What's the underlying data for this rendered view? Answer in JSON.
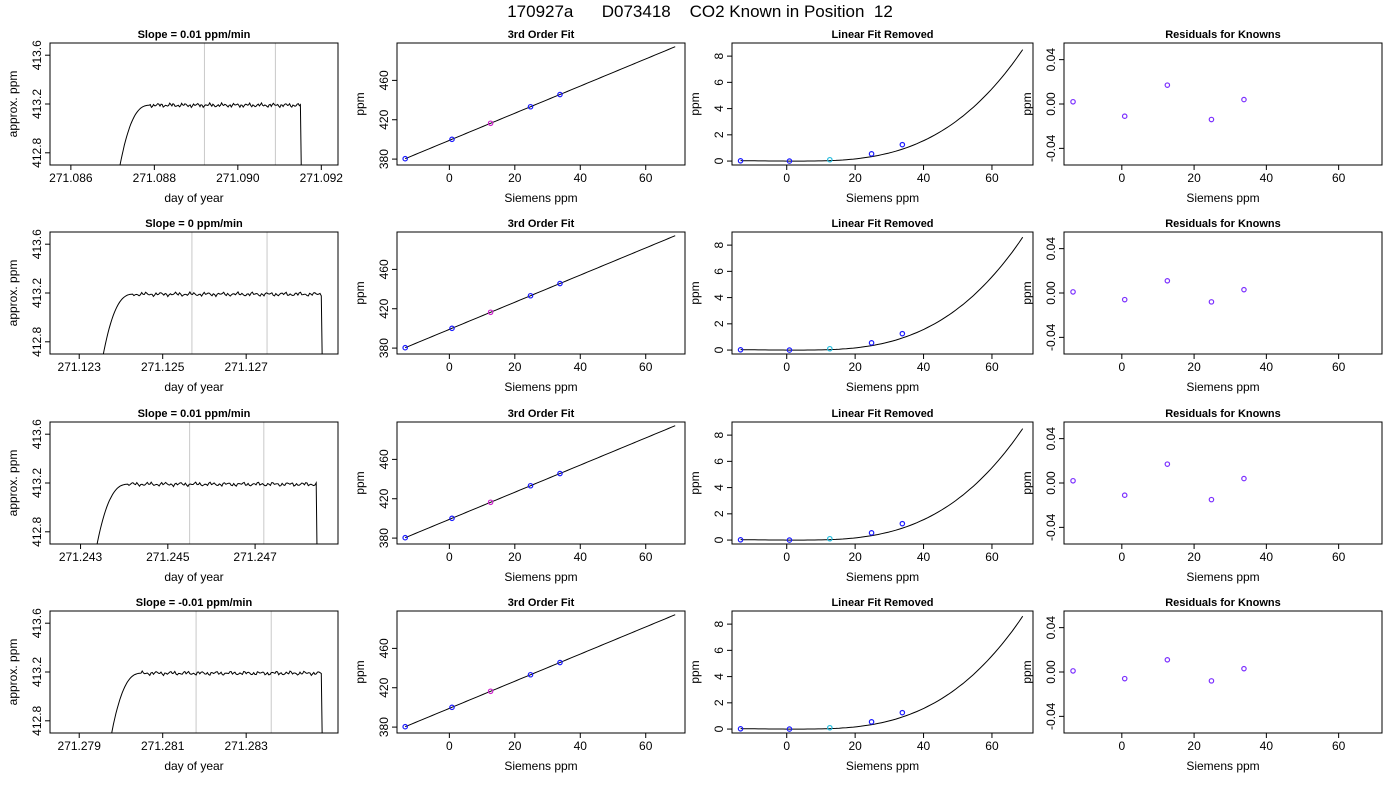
{
  "page": {
    "title": "170927a      D073418    CO2 Known in Position  12"
  },
  "colors": {
    "axis": "#000000",
    "trace": "#000000",
    "vline": "#c8c8c8",
    "point_blue": "#1a1aff",
    "point_magenta": "#cc22cc",
    "point_cyan": "#22bbdd",
    "residual_point": "#7b2fff"
  },
  "chart_data": [
    {
      "type": "line",
      "row": 1,
      "col": 1,
      "title": "Slope =  0.01  ppm/min",
      "xlabel": "day of year",
      "ylabel": "approx. ppm",
      "xlim": [
        271.0855,
        271.0924
      ],
      "ylim": [
        412.7,
        413.7
      ],
      "xticks": [
        "271.086",
        "271.088",
        "271.090",
        "271.092"
      ],
      "xtick_values": [
        271.086,
        271.088,
        271.09,
        271.092
      ],
      "yticks": [
        "412.8",
        "413.2",
        "413.6"
      ],
      "ytick_values": [
        412.8,
        413.2,
        413.6
      ],
      "vlines": [
        271.0892,
        271.0909
      ],
      "trace": {
        "start": 271.0871,
        "rise_end": 271.0879,
        "end": 271.0915,
        "level": 413.19
      }
    },
    {
      "type": "line",
      "row": 1,
      "col": 2,
      "title": "3rd Order Fit",
      "xlabel": "Siemens ppm",
      "ylabel": "ppm",
      "xlim": [
        -16,
        72
      ],
      "ylim": [
        374,
        498
      ],
      "xticks": [
        "0",
        "20",
        "40",
        "60"
      ],
      "xtick_values": [
        0,
        20,
        40,
        60
      ],
      "yticks": [
        "380",
        "420",
        "460"
      ],
      "ytick_values": [
        380,
        420,
        460
      ],
      "curve": {
        "x_range": [
          -13.5,
          69
        ],
        "coef": [
          399,
          1.38,
          0.0,
          0.0
        ]
      },
      "points": [
        {
          "x": -13.5,
          "y": 380.4,
          "color": "blue"
        },
        {
          "x": 0.8,
          "y": 400.1,
          "color": "blue"
        },
        {
          "x": 12.6,
          "y": 416.4,
          "color": "magenta"
        },
        {
          "x": 24.8,
          "y": 433.2,
          "color": "blue"
        },
        {
          "x": 33.8,
          "y": 445.6,
          "color": "blue"
        }
      ]
    },
    {
      "type": "line",
      "row": 1,
      "col": 3,
      "title": "Linear Fit Removed",
      "xlabel": "Siemens ppm",
      "ylabel": "ppm",
      "xlim": [
        -16,
        72
      ],
      "ylim": [
        -0.3,
        9
      ],
      "xticks": [
        "0",
        "20",
        "40",
        "60"
      ],
      "xtick_values": [
        0,
        20,
        40,
        60
      ],
      "yticks": [
        "0",
        "2",
        "4",
        "6",
        "8"
      ],
      "ytick_values": [
        0,
        2,
        4,
        6,
        8
      ],
      "curve": {
        "x_range": [
          -13.5,
          69
        ],
        "cubic_at_69": 8.5
      },
      "points": [
        {
          "x": -13.5,
          "y": 0.02,
          "color": "blue"
        },
        {
          "x": 0.8,
          "y": 0.0,
          "color": "blue"
        },
        {
          "x": 12.6,
          "y": 0.1,
          "color": "cyan"
        },
        {
          "x": 24.8,
          "y": 0.55,
          "color": "blue"
        },
        {
          "x": 33.8,
          "y": 1.25,
          "color": "blue"
        }
      ]
    },
    {
      "type": "scatter",
      "row": 1,
      "col": 4,
      "title": "Residuals for Knowns",
      "xlabel": "Siemens ppm",
      "ylabel": "ppm",
      "xlim": [
        -16,
        72
      ],
      "ylim": [
        -0.055,
        0.055
      ],
      "xticks": [
        "0",
        "20",
        "40",
        "60"
      ],
      "xtick_values": [
        0,
        20,
        40,
        60
      ],
      "yticks": [
        "-0.04",
        "0.00",
        "0.04"
      ],
      "ytick_values": [
        -0.04,
        0.0,
        0.04
      ],
      "points": [
        {
          "x": -13.5,
          "y": 0.002
        },
        {
          "x": 0.8,
          "y": -0.011
        },
        {
          "x": 12.6,
          "y": 0.017
        },
        {
          "x": 24.8,
          "y": -0.014
        },
        {
          "x": 33.8,
          "y": 0.004
        }
      ]
    },
    {
      "type": "line",
      "row": 2,
      "col": 1,
      "title": "Slope =  0  ppm/min",
      "xlabel": "day of year",
      "ylabel": "approx. ppm",
      "xlim": [
        271.1223,
        271.1292
      ],
      "ylim": [
        412.7,
        413.7
      ],
      "xticks": [
        "271.123",
        "271.125",
        "271.127"
      ],
      "xtick_values": [
        271.123,
        271.125,
        271.127
      ],
      "yticks": [
        "412.8",
        "413.2",
        "413.6"
      ],
      "ytick_values": [
        412.8,
        413.2,
        413.6
      ],
      "vlines": [
        271.1257,
        271.1275
      ],
      "trace": {
        "start": 271.1235,
        "rise_end": 271.1243,
        "end": 271.1288,
        "level": 413.19
      }
    },
    {
      "type": "line",
      "row": 2,
      "col": 2,
      "title": "3rd Order Fit",
      "xlabel": "Siemens ppm",
      "ylabel": "ppm",
      "xlim": [
        -16,
        72
      ],
      "ylim": [
        374,
        498
      ],
      "xticks": [
        "0",
        "20",
        "40",
        "60"
      ],
      "xtick_values": [
        0,
        20,
        40,
        60
      ],
      "yticks": [
        "380",
        "420",
        "460"
      ],
      "ytick_values": [
        380,
        420,
        460
      ],
      "curve": {
        "x_range": [
          -13.5,
          69
        ],
        "coef": [
          399,
          1.38,
          0.0,
          0.0
        ]
      },
      "points": [
        {
          "x": -13.5,
          "y": 380.4,
          "color": "blue"
        },
        {
          "x": 0.8,
          "y": 400.1,
          "color": "blue"
        },
        {
          "x": 12.6,
          "y": 416.4,
          "color": "magenta"
        },
        {
          "x": 24.8,
          "y": 433.2,
          "color": "blue"
        },
        {
          "x": 33.8,
          "y": 445.6,
          "color": "blue"
        }
      ]
    },
    {
      "type": "line",
      "row": 2,
      "col": 3,
      "title": "Linear Fit Removed",
      "xlabel": "Siemens ppm",
      "ylabel": "ppm",
      "xlim": [
        -16,
        72
      ],
      "ylim": [
        -0.3,
        9
      ],
      "xticks": [
        "0",
        "20",
        "40",
        "60"
      ],
      "xtick_values": [
        0,
        20,
        40,
        60
      ],
      "yticks": [
        "0",
        "2",
        "4",
        "6",
        "8"
      ],
      "ytick_values": [
        0,
        2,
        4,
        6,
        8
      ],
      "curve": {
        "x_range": [
          -13.5,
          69
        ],
        "cubic_at_69": 8.6
      },
      "points": [
        {
          "x": -13.5,
          "y": 0.02,
          "color": "blue"
        },
        {
          "x": 0.8,
          "y": 0.0,
          "color": "blue"
        },
        {
          "x": 12.6,
          "y": 0.1,
          "color": "cyan"
        },
        {
          "x": 24.8,
          "y": 0.55,
          "color": "blue"
        },
        {
          "x": 33.8,
          "y": 1.25,
          "color": "blue"
        }
      ]
    },
    {
      "type": "scatter",
      "row": 2,
      "col": 4,
      "title": "Residuals for Knowns",
      "xlabel": "Siemens ppm",
      "ylabel": "ppm",
      "xlim": [
        -16,
        72
      ],
      "ylim": [
        -0.055,
        0.055
      ],
      "xticks": [
        "0",
        "20",
        "40",
        "60"
      ],
      "xtick_values": [
        0,
        20,
        40,
        60
      ],
      "yticks": [
        "-0.04",
        "0.00",
        "0.04"
      ],
      "ytick_values": [
        -0.04,
        0.0,
        0.04
      ],
      "points": [
        {
          "x": -13.5,
          "y": 0.001
        },
        {
          "x": 0.8,
          "y": -0.006
        },
        {
          "x": 12.6,
          "y": 0.011
        },
        {
          "x": 24.8,
          "y": -0.008
        },
        {
          "x": 33.8,
          "y": 0.003
        }
      ]
    },
    {
      "type": "line",
      "row": 3,
      "col": 1,
      "title": "Slope =  0.01  ppm/min",
      "xlabel": "day of year",
      "ylabel": "approx. ppm",
      "xlim": [
        271.2423,
        271.2489
      ],
      "ylim": [
        412.7,
        413.7
      ],
      "xticks": [
        "271.243",
        "271.245",
        "271.247"
      ],
      "xtick_values": [
        271.243,
        271.245,
        271.247
      ],
      "yticks": [
        "412.8",
        "413.2",
        "413.6"
      ],
      "ytick_values": [
        412.8,
        413.2,
        413.6
      ],
      "vlines": [
        271.2455,
        271.2472
      ],
      "trace": {
        "start": 271.2433,
        "rise_end": 271.2441,
        "end": 271.2484,
        "level": 413.19
      }
    },
    {
      "type": "line",
      "row": 3,
      "col": 2,
      "title": "3rd Order Fit",
      "xlabel": "Siemens ppm",
      "ylabel": "ppm",
      "xlim": [
        -16,
        72
      ],
      "ylim": [
        374,
        498
      ],
      "xticks": [
        "0",
        "20",
        "40",
        "60"
      ],
      "xtick_values": [
        0,
        20,
        40,
        60
      ],
      "yticks": [
        "380",
        "420",
        "460"
      ],
      "ytick_values": [
        380,
        420,
        460
      ],
      "curve": {
        "x_range": [
          -13.5,
          69
        ],
        "coef": [
          399,
          1.38,
          0.0,
          0.0
        ]
      },
      "points": [
        {
          "x": -13.5,
          "y": 380.4,
          "color": "blue"
        },
        {
          "x": 0.8,
          "y": 400.1,
          "color": "blue"
        },
        {
          "x": 12.6,
          "y": 416.4,
          "color": "magenta"
        },
        {
          "x": 24.8,
          "y": 433.2,
          "color": "blue"
        },
        {
          "x": 33.8,
          "y": 445.6,
          "color": "blue"
        }
      ]
    },
    {
      "type": "line",
      "row": 3,
      "col": 3,
      "title": "Linear Fit Removed",
      "xlabel": "Siemens ppm",
      "ylabel": "ppm",
      "xlim": [
        -16,
        72
      ],
      "ylim": [
        -0.3,
        9
      ],
      "xticks": [
        "0",
        "20",
        "40",
        "60"
      ],
      "xtick_values": [
        0,
        20,
        40,
        60
      ],
      "yticks": [
        "0",
        "2",
        "4",
        "6",
        "8"
      ],
      "ytick_values": [
        0,
        2,
        4,
        6,
        8
      ],
      "curve": {
        "x_range": [
          -13.5,
          69
        ],
        "cubic_at_69": 8.5
      },
      "points": [
        {
          "x": -13.5,
          "y": 0.02,
          "color": "blue"
        },
        {
          "x": 0.8,
          "y": 0.0,
          "color": "blue"
        },
        {
          "x": 12.6,
          "y": 0.1,
          "color": "cyan"
        },
        {
          "x": 24.8,
          "y": 0.55,
          "color": "blue"
        },
        {
          "x": 33.8,
          "y": 1.25,
          "color": "blue"
        }
      ]
    },
    {
      "type": "scatter",
      "row": 3,
      "col": 4,
      "title": "Residuals for Knowns",
      "xlabel": "Siemens ppm",
      "ylabel": "ppm",
      "xlim": [
        -16,
        72
      ],
      "ylim": [
        -0.055,
        0.055
      ],
      "xticks": [
        "0",
        "20",
        "40",
        "60"
      ],
      "xtick_values": [
        0,
        20,
        40,
        60
      ],
      "yticks": [
        "-0.04",
        "0.00",
        "0.04"
      ],
      "ytick_values": [
        -0.04,
        0.0,
        0.04
      ],
      "points": [
        {
          "x": -13.5,
          "y": 0.002
        },
        {
          "x": 0.8,
          "y": -0.011
        },
        {
          "x": 12.6,
          "y": 0.017
        },
        {
          "x": 24.8,
          "y": -0.015
        },
        {
          "x": 33.8,
          "y": 0.004
        }
      ]
    },
    {
      "type": "line",
      "row": 4,
      "col": 1,
      "title": "Slope =  -0.01  ppm/min",
      "xlabel": "day of year",
      "ylabel": "approx. ppm",
      "xlim": [
        271.2783,
        271.2852
      ],
      "ylim": [
        412.7,
        413.7
      ],
      "xticks": [
        "271.279",
        "271.281",
        "271.283"
      ],
      "xtick_values": [
        271.279,
        271.281,
        271.283
      ],
      "yticks": [
        "412.8",
        "413.2",
        "413.6"
      ],
      "ytick_values": [
        412.8,
        413.2,
        413.6
      ],
      "vlines": [
        271.2818,
        271.2836
      ],
      "trace": {
        "start": 271.2797,
        "rise_end": 271.2805,
        "end": 271.2848,
        "level": 413.19
      }
    },
    {
      "type": "line",
      "row": 4,
      "col": 2,
      "title": "3rd Order Fit",
      "xlabel": "Siemens ppm",
      "ylabel": "ppm",
      "xlim": [
        -16,
        72
      ],
      "ylim": [
        374,
        498
      ],
      "xticks": [
        "0",
        "20",
        "40",
        "60"
      ],
      "xtick_values": [
        0,
        20,
        40,
        60
      ],
      "yticks": [
        "380",
        "420",
        "460"
      ],
      "ytick_values": [
        380,
        420,
        460
      ],
      "curve": {
        "x_range": [
          -13.5,
          69
        ],
        "coef": [
          399,
          1.38,
          0.0,
          0.0
        ]
      },
      "points": [
        {
          "x": -13.5,
          "y": 380.4,
          "color": "blue"
        },
        {
          "x": 0.8,
          "y": 400.1,
          "color": "blue"
        },
        {
          "x": 12.6,
          "y": 416.4,
          "color": "magenta"
        },
        {
          "x": 24.8,
          "y": 433.2,
          "color": "blue"
        },
        {
          "x": 33.8,
          "y": 445.6,
          "color": "blue"
        }
      ]
    },
    {
      "type": "line",
      "row": 4,
      "col": 3,
      "title": "Linear Fit Removed",
      "xlabel": "Siemens ppm",
      "ylabel": "ppm",
      "xlim": [
        -16,
        72
      ],
      "ylim": [
        -0.3,
        9
      ],
      "xticks": [
        "0",
        "20",
        "40",
        "60"
      ],
      "xtick_values": [
        0,
        20,
        40,
        60
      ],
      "yticks": [
        "0",
        "2",
        "4",
        "6",
        "8"
      ],
      "ytick_values": [
        0,
        2,
        4,
        6,
        8
      ],
      "curve": {
        "x_range": [
          -13.5,
          69
        ],
        "cubic_at_69": 8.6
      },
      "points": [
        {
          "x": -13.5,
          "y": 0.02,
          "color": "blue"
        },
        {
          "x": 0.8,
          "y": 0.0,
          "color": "blue"
        },
        {
          "x": 12.6,
          "y": 0.1,
          "color": "cyan"
        },
        {
          "x": 24.8,
          "y": 0.55,
          "color": "blue"
        },
        {
          "x": 33.8,
          "y": 1.25,
          "color": "blue"
        }
      ]
    },
    {
      "type": "scatter",
      "row": 4,
      "col": 4,
      "title": "Residuals for Knowns",
      "xlabel": "Siemens ppm",
      "ylabel": "ppm",
      "xlim": [
        -16,
        72
      ],
      "ylim": [
        -0.055,
        0.055
      ],
      "xticks": [
        "0",
        "20",
        "40",
        "60"
      ],
      "xtick_values": [
        0,
        20,
        40,
        60
      ],
      "yticks": [
        "-0.04",
        "0.00",
        "0.04"
      ],
      "ytick_values": [
        -0.04,
        0.0,
        0.04
      ],
      "points": [
        {
          "x": -13.5,
          "y": 0.001
        },
        {
          "x": 0.8,
          "y": -0.006
        },
        {
          "x": 12.6,
          "y": 0.011
        },
        {
          "x": 24.8,
          "y": -0.008
        },
        {
          "x": 33.8,
          "y": 0.003
        }
      ]
    }
  ]
}
